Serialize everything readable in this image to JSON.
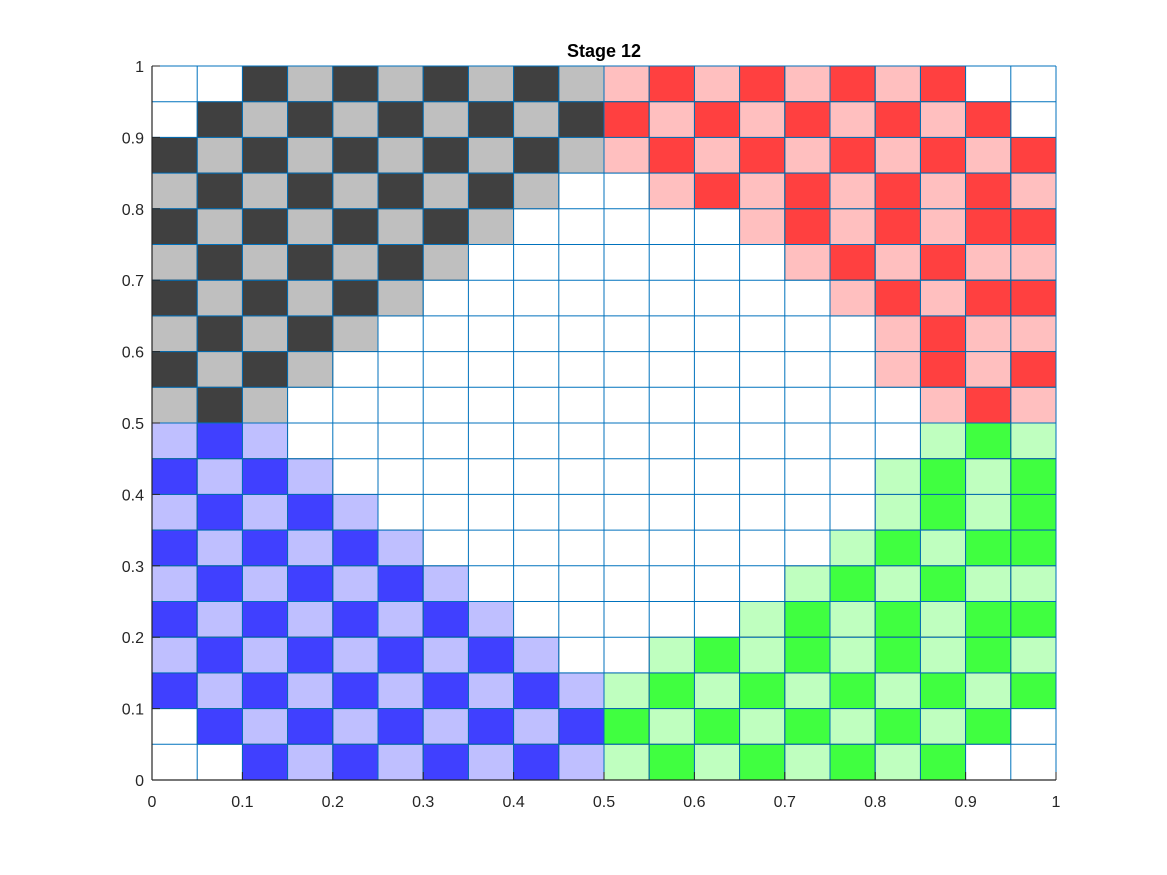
{
  "chart_data": {
    "type": "heatmap",
    "title": "Stage 12",
    "xlabel": "",
    "ylabel": "",
    "xlim": [
      0,
      1
    ],
    "ylim": [
      0,
      1
    ],
    "grid": true,
    "cell_size": 0.05,
    "x_ticks": [
      "0",
      "0.1",
      "0.2",
      "0.3",
      "0.4",
      "0.5",
      "0.6",
      "0.7",
      "0.8",
      "0.9",
      "1"
    ],
    "y_ticks": [
      "0",
      "0.1",
      "0.2",
      "0.3",
      "0.4",
      "0.5",
      "0.6",
      "0.7",
      "0.8",
      "0.9",
      "1"
    ],
    "legend": {
      ".": "empty",
      "K": "dark gray",
      "k": "light gray",
      "R": "red",
      "r": "light red",
      "B": "blue",
      "b": "light blue",
      "G": "green",
      "g": "light green"
    },
    "colors": {
      "K": "#404040",
      "k": "#bfbfbf",
      "R": "#ff4040",
      "r": "#ffbfbf",
      "B": "#4040ff",
      "b": "#bfbfff",
      "G": "#40ff40",
      "g": "#bfffbf",
      "grid": "#0072bd",
      "axis": "#262626"
    },
    "rows_top_to_bottom": [
      "..KkKkKkKkrRrRrRrR..",
      ".KkKkKkKkKRrRrRrRrR.",
      "KkKkKkKkKkrRrRrRrRrR",
      "kKkKkKkKk..rRrRrRrRr",
      "KkKkKkKk.....rRrRrRR",
      "kKkKkKk.......rRrRrr",
      "KkKkKk.........rRrRR",
      "kKkKk...........rRrr",
      "KkKk............rRrR",
      "kKk..............rRr",
      "bBb..............gGg",
      "BbBb............gGgG",
      "bBbBb...........gGgG",
      "BbBbBb.........gGgGG",
      "bBbBbBb.......gGgGgg",
      "BbBbBbBb.....gGgGgGG",
      "bBbBbBbBb..gGgGgGgGg",
      "BbBbBbBbBbgGgGgGgGgG",
      ".BbBbBbBbBGgGgGgGgG.",
      "..BbBbBbBbgGgGgGgG.."
    ]
  }
}
